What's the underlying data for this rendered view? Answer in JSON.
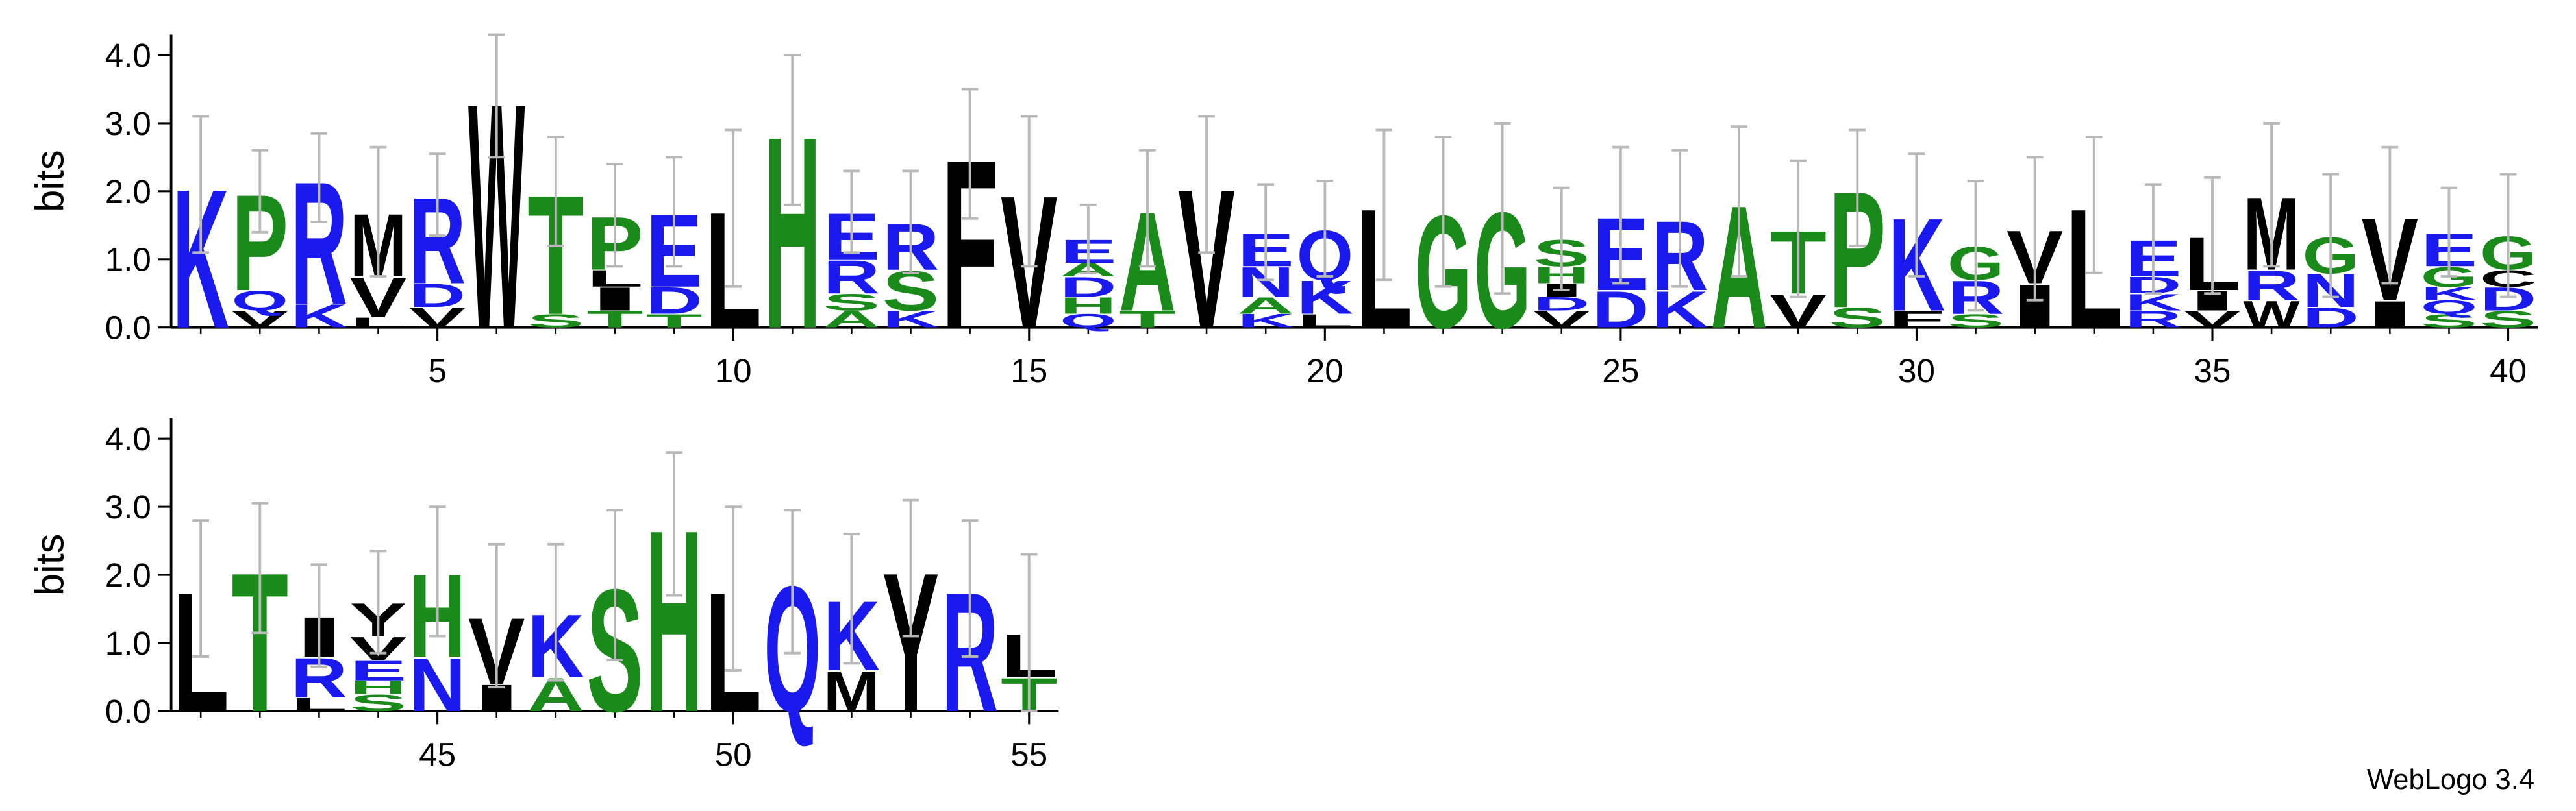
{
  "chart_data": [
    {
      "type": "logo",
      "ylabel": "bits",
      "xlim": [
        0.5,
        40.5
      ],
      "ylim": [
        0,
        4.3
      ],
      "yticks": [
        {
          "value": 0,
          "label": "0.0"
        },
        {
          "value": 1,
          "label": "1.0"
        },
        {
          "value": 2,
          "label": "2.0"
        },
        {
          "value": 3,
          "label": "3.0"
        },
        {
          "value": 4,
          "label": "4.0"
        }
      ],
      "xticks": [
        5,
        10,
        15,
        20,
        25,
        30,
        35,
        40
      ],
      "x": [
        1,
        2,
        3,
        4,
        5,
        6,
        7,
        8,
        9,
        10,
        11,
        12,
        13,
        14,
        15,
        16,
        17,
        18,
        19,
        20,
        21,
        22,
        23,
        24,
        25,
        26,
        27,
        28,
        29,
        30,
        31,
        32,
        33,
        34,
        35,
        36,
        37,
        38,
        39,
        40
      ],
      "stacks": [
        {
          "l": [
            "K"
          ],
          "v": [
            2.1
          ]
        },
        {
          "l": [
            "V",
            "Q",
            "P"
          ],
          "v": [
            0.25,
            0.3,
            1.45
          ]
        },
        {
          "l": [
            "K",
            "R"
          ],
          "v": [
            0.35,
            1.85
          ]
        },
        {
          "l": [
            "L",
            "V",
            "M"
          ],
          "v": [
            0.15,
            0.6,
            0.95
          ]
        },
        {
          "l": [
            "V",
            "D",
            "R"
          ],
          "v": [
            0.3,
            0.35,
            1.3
          ]
        },
        {
          "l": [
            "W"
          ],
          "v": [
            3.4
          ]
        },
        {
          "l": [
            "S",
            "T"
          ],
          "v": [
            0.2,
            1.8
          ]
        },
        {
          "l": [
            "T",
            "I",
            "L",
            "P"
          ],
          "v": [
            0.25,
            0.35,
            0.25,
            0.8
          ]
        },
        {
          "l": [
            "T",
            "D",
            "E"
          ],
          "v": [
            0.2,
            0.4,
            1.1
          ]
        },
        {
          "l": [
            "L"
          ],
          "v": [
            1.75
          ]
        },
        {
          "l": [
            "H"
          ],
          "v": [
            2.9
          ]
        },
        {
          "l": [
            "A",
            "S",
            "R",
            "E"
          ],
          "v": [
            0.25,
            0.25,
            0.5,
            0.7
          ]
        },
        {
          "l": [
            "K",
            "S",
            "R"
          ],
          "v": [
            0.25,
            0.6,
            0.7
          ]
        },
        {
          "l": [
            "F"
          ],
          "v": [
            2.55
          ]
        },
        {
          "l": [
            "V"
          ],
          "v": [
            2.0
          ]
        },
        {
          "l": [
            "Q",
            "H",
            "D",
            "A",
            "E"
          ],
          "v": [
            0.2,
            0.25,
            0.3,
            0.2,
            0.35
          ]
        },
        {
          "l": [
            "T",
            "A"
          ],
          "v": [
            0.25,
            1.5
          ]
        },
        {
          "l": [
            "V"
          ],
          "v": [
            2.1
          ]
        },
        {
          "l": [
            "K",
            "A",
            "N",
            "E"
          ],
          "v": [
            0.2,
            0.25,
            0.45,
            0.5
          ]
        },
        {
          "l": [
            "L",
            "K",
            "Q"
          ],
          "v": [
            0.2,
            0.5,
            0.75
          ]
        },
        {
          "l": [
            "L"
          ],
          "v": [
            1.8
          ]
        },
        {
          "l": [
            "G"
          ],
          "v": [
            1.7
          ]
        },
        {
          "l": [
            "G"
          ],
          "v": [
            1.75
          ]
        },
        {
          "l": [
            "V",
            "D",
            "I",
            "H",
            "S"
          ],
          "v": [
            0.25,
            0.2,
            0.2,
            0.25,
            0.4
          ]
        },
        {
          "l": [
            "D",
            "E"
          ],
          "v": [
            0.55,
            1.1
          ]
        },
        {
          "l": [
            "K",
            "R"
          ],
          "v": [
            0.55,
            1.05
          ]
        },
        {
          "l": [
            "A"
          ],
          "v": [
            1.85
          ]
        },
        {
          "l": [
            "V",
            "T"
          ],
          "v": [
            0.5,
            0.95
          ]
        },
        {
          "l": [
            "S",
            "P"
          ],
          "v": [
            0.3,
            1.75
          ]
        },
        {
          "l": [
            "F",
            "K"
          ],
          "v": [
            0.25,
            1.4
          ]
        },
        {
          "l": [
            "S",
            "R",
            "G"
          ],
          "v": [
            0.2,
            0.5,
            0.5
          ]
        },
        {
          "l": [
            "I",
            "V"
          ],
          "v": [
            0.65,
            0.8
          ]
        },
        {
          "l": [
            "L"
          ],
          "v": [
            1.8
          ]
        },
        {
          "l": [
            "R",
            "K",
            "D",
            "E"
          ],
          "v": [
            0.25,
            0.25,
            0.25,
            0.55
          ]
        },
        {
          "l": [
            "V",
            "I",
            "L"
          ],
          "v": [
            0.25,
            0.3,
            0.8
          ]
        },
        {
          "l": [
            "W",
            "R",
            "M"
          ],
          "v": [
            0.4,
            0.45,
            1.1
          ]
        },
        {
          "l": [
            "D",
            "N",
            "G"
          ],
          "v": [
            0.3,
            0.5,
            0.55
          ]
        },
        {
          "l": [
            "I",
            "V"
          ],
          "v": [
            0.4,
            1.25
          ]
        },
        {
          "l": [
            "S",
            "Q",
            "K",
            "G",
            "E"
          ],
          "v": [
            0.2,
            0.2,
            0.2,
            0.3,
            0.5
          ]
        },
        {
          "l": [
            "S",
            "D",
            "C",
            "G"
          ],
          "v": [
            0.25,
            0.35,
            0.25,
            0.5
          ]
        }
      ],
      "errors": [
        1.0,
        0.6,
        0.65,
        0.95,
        0.6,
        0.9,
        0.8,
        0.75,
        0.8,
        1.15,
        1.1,
        0.6,
        0.75,
        0.95,
        1.1,
        0.5,
        0.85,
        1.0,
        0.7,
        0.7,
        1.1,
        1.1,
        1.25,
        0.75,
        1.0,
        1.0,
        1.1,
        1.0,
        0.85,
        0.9,
        0.95,
        1.05,
        1.0,
        0.8,
        0.85,
        1.05,
        0.9,
        1.0,
        0.65,
        0.9
      ]
    },
    {
      "type": "logo",
      "ylabel": "bits",
      "xlim": [
        40.5,
        55.5
      ],
      "ylim": [
        0,
        4.3
      ],
      "yticks": [
        {
          "value": 0,
          "label": "0.0"
        },
        {
          "value": 1,
          "label": "1.0"
        },
        {
          "value": 2,
          "label": "2.0"
        },
        {
          "value": 3,
          "label": "3.0"
        },
        {
          "value": 4,
          "label": "4.0"
        }
      ],
      "xticks": [
        45,
        50,
        55
      ],
      "x": [
        41,
        42,
        43,
        44,
        45,
        46,
        47,
        48,
        49,
        50,
        51,
        52,
        53,
        54,
        55
      ],
      "stacks": [
        {
          "l": [
            "L"
          ],
          "v": [
            1.8
          ]
        },
        {
          "l": [
            "T"
          ],
          "v": [
            2.1
          ]
        },
        {
          "l": [
            "L",
            "R",
            "I"
          ],
          "v": [
            0.2,
            0.6,
            0.6
          ]
        },
        {
          "l": [
            "S",
            "H",
            "E",
            "V",
            "Y"
          ],
          "v": [
            0.25,
            0.2,
            0.3,
            0.35,
            0.5
          ]
        },
        {
          "l": [
            "N",
            "H"
          ],
          "v": [
            0.8,
            1.25
          ]
        },
        {
          "l": [
            "I",
            "V"
          ],
          "v": [
            0.4,
            1.0
          ]
        },
        {
          "l": [
            "A",
            "K"
          ],
          "v": [
            0.5,
            0.95
          ]
        },
        {
          "l": [
            "S"
          ],
          "v": [
            1.85
          ]
        },
        {
          "l": [
            "H"
          ],
          "v": [
            2.75
          ]
        },
        {
          "l": [
            "L"
          ],
          "v": [
            1.8
          ]
        },
        {
          "l": [
            "Q"
          ],
          "v": [
            1.9
          ]
        },
        {
          "l": [
            "M",
            "K"
          ],
          "v": [
            0.6,
            1.05
          ]
        },
        {
          "l": [
            "Y"
          ],
          "v": [
            2.1
          ]
        },
        {
          "l": [
            "R"
          ],
          "v": [
            1.8
          ]
        },
        {
          "l": [
            "T",
            "L"
          ],
          "v": [
            0.5,
            0.65
          ]
        }
      ],
      "errors": [
        1.0,
        0.95,
        0.75,
        0.75,
        0.95,
        1.05,
        1.0,
        1.1,
        1.05,
        1.2,
        1.05,
        0.95,
        1.0,
        1.0,
        1.15
      ]
    }
  ],
  "letter_colors": {
    "V": "#000000",
    "L": "#000000",
    "I": "#000000",
    "M": "#000000",
    "F": "#000000",
    "W": "#000000",
    "Y": "#000000",
    "C": "#000000",
    "K": "#1a1aee",
    "R": "#1a1aee",
    "D": "#1a1aee",
    "E": "#1a1aee",
    "N": "#1a1aee",
    "Q": "#1a1aee",
    "A": "#1a8a1a",
    "G": "#1a8a1a",
    "S": "#1a8a1a",
    "T": "#1a8a1a",
    "P": "#1a8a1a",
    "H": "#1a8a1a"
  },
  "credit": "WebLogo 3.4"
}
